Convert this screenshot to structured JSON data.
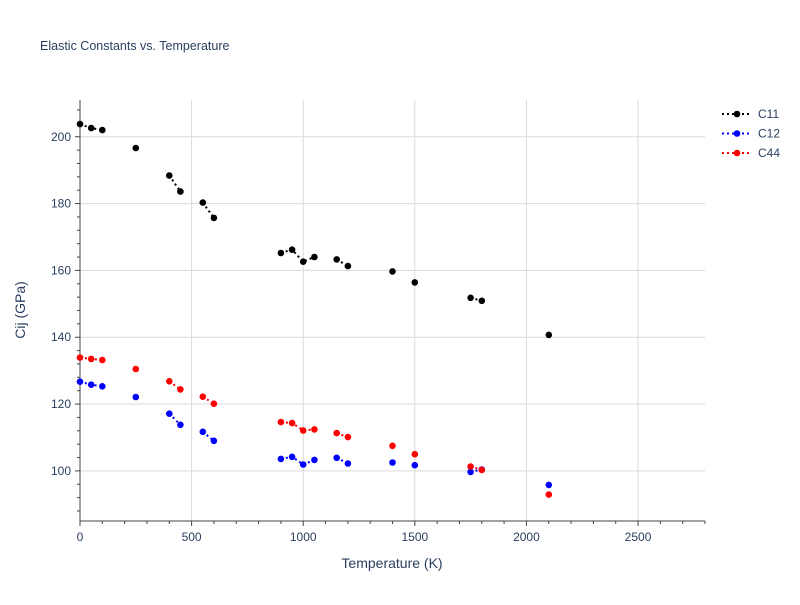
{
  "chart_data": {
    "type": "scatter",
    "title": "Elastic Constants vs. Temperature",
    "xlabel": "Temperature (K)",
    "ylabel": "Cij (GPa)",
    "xlim": [
      0,
      2800
    ],
    "ylim": [
      85,
      211
    ],
    "xticks": [
      0,
      500,
      1000,
      1500,
      2000,
      2500
    ],
    "yticks": [
      100,
      120,
      140,
      160,
      180,
      200
    ],
    "grid": true,
    "legend_position": "top-right",
    "series": [
      {
        "name": "C11",
        "color": "#000000",
        "segments": [
          [
            [
              0,
              203.8
            ],
            [
              50,
              202.6
            ],
            [
              100,
              202.0
            ]
          ],
          [
            [
              250,
              196.6
            ]
          ],
          [
            [
              400,
              188.4
            ],
            [
              450,
              183.6
            ]
          ],
          [
            [
              550,
              180.3
            ],
            [
              600,
              175.7
            ]
          ],
          [
            [
              900,
              165.2
            ],
            [
              950,
              166.2
            ],
            [
              1000,
              162.6
            ],
            [
              1050,
              164.0
            ]
          ],
          [
            [
              1150,
              163.3
            ],
            [
              1200,
              161.3
            ]
          ],
          [
            [
              1400,
              159.7
            ]
          ],
          [
            [
              1500,
              156.4
            ]
          ],
          [
            [
              1750,
              151.8
            ],
            [
              1800,
              150.9
            ]
          ],
          [
            [
              2100,
              140.7
            ]
          ]
        ]
      },
      {
        "name": "C12",
        "color": "#0000ff",
        "segments": [
          [
            [
              0,
              126.7
            ],
            [
              50,
              125.8
            ],
            [
              100,
              125.3
            ]
          ],
          [
            [
              250,
              122.1
            ]
          ],
          [
            [
              400,
              117.1
            ],
            [
              450,
              113.8
            ]
          ],
          [
            [
              550,
              111.7
            ],
            [
              600,
              109.0
            ]
          ],
          [
            [
              900,
              103.6
            ],
            [
              950,
              104.2
            ],
            [
              1000,
              101.9
            ],
            [
              1050,
              103.3
            ]
          ],
          [
            [
              1150,
              103.9
            ],
            [
              1200,
              102.2
            ]
          ],
          [
            [
              1400,
              102.5
            ]
          ],
          [
            [
              1500,
              101.7
            ]
          ],
          [
            [
              1750,
              99.7
            ],
            [
              1800,
              100.4
            ]
          ],
          [
            [
              2100,
              95.8
            ]
          ]
        ]
      },
      {
        "name": "C44",
        "color": "#ff0000",
        "segments": [
          [
            [
              0,
              133.9
            ],
            [
              50,
              133.5
            ],
            [
              100,
              133.2
            ]
          ],
          [
            [
              250,
              130.5
            ]
          ],
          [
            [
              400,
              126.8
            ],
            [
              450,
              124.4
            ]
          ],
          [
            [
              550,
              122.2
            ],
            [
              600,
              120.1
            ]
          ],
          [
            [
              900,
              114.6
            ],
            [
              950,
              114.3
            ],
            [
              1000,
              112.1
            ],
            [
              1050,
              112.4
            ]
          ],
          [
            [
              1150,
              111.3
            ],
            [
              1200,
              110.1
            ]
          ],
          [
            [
              1400,
              107.5
            ]
          ],
          [
            [
              1500,
              105.0
            ]
          ],
          [
            [
              1750,
              101.3
            ],
            [
              1800,
              100.3
            ]
          ],
          [
            [
              2100,
              92.9
            ]
          ]
        ]
      }
    ]
  }
}
